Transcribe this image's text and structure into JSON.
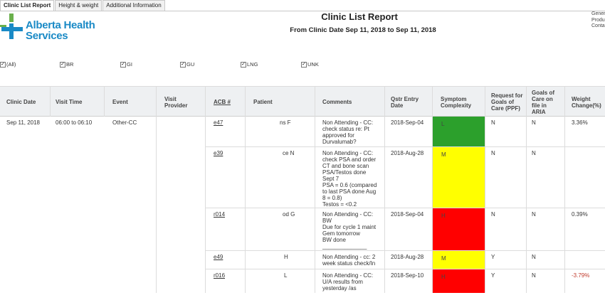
{
  "tabs": [
    {
      "label": "Clinic List Report",
      "active": true
    },
    {
      "label": "Height & weight",
      "active": false
    },
    {
      "label": "Additional Information",
      "active": false
    }
  ],
  "logo": {
    "line1": "Alberta Health",
    "line2": "Services",
    "color": "#1a8ac6",
    "accent": "#6ab04c"
  },
  "report": {
    "title": "Clinic List Report",
    "subtitle": "From Clinic Date Sep 11, 2018 to Sep 11, 2018"
  },
  "corner_text": [
    "Gener",
    "Produ",
    "Conta"
  ],
  "filters": [
    {
      "label": "(All)",
      "checked": true
    },
    {
      "label": "BR",
      "checked": true
    },
    {
      "label": "GI",
      "checked": true
    },
    {
      "label": "GU",
      "checked": true
    },
    {
      "label": "LNG",
      "checked": true
    },
    {
      "label": "UNK",
      "checked": true
    }
  ],
  "columns": {
    "clinic_date": "Clinic Date",
    "visit_time": "Visit Time",
    "event": "Event",
    "visit_provider": "Visit Provider",
    "acb": "ACB #",
    "patient": "Patient",
    "comments": "Comments",
    "qstr_entry_date": "Qstr Entry Date",
    "symptom_complexity": "Symptom Complexity",
    "request_goals": "Request for Goals of Care (PPF)",
    "goals_aria": "Goals of Care on file in ARIA",
    "weight_change": "Weight Change(%)"
  },
  "group": {
    "clinic_date": "Sep 11, 2018",
    "visit_time": "06:00 to 06:10",
    "event": "Other-CC"
  },
  "colors": {
    "green": "#2ca02c",
    "yellow": "#ffff00",
    "red": "#ff0000"
  },
  "rows": [
    {
      "acb": "e47",
      "patient": "ns F",
      "comments": [
        "Non Attending - CC:",
        "check status re: Pt",
        "approved for",
        "Durvalumab?"
      ],
      "qstr_date": "2018-Sep-04",
      "symptom": "L",
      "symptom_color": "green",
      "request": "N",
      "goals": "N",
      "weight": "3.36%",
      "weight_negative": false
    },
    {
      "acb": "e39",
      "patient": "ce N",
      "comments": [
        "Non Attending - CC:",
        "check PSA and order",
        "CT and bone scan",
        "PSA/Testos done",
        "Sept 7",
        "PSA = 0.6 (compared",
        "to last PSA done Aug",
        "8 = 0.8)",
        "Testos = <0.2"
      ],
      "qstr_date": "2018-Aug-28",
      "symptom": "M",
      "symptom_color": "yellow",
      "request": "N",
      "goals": "N",
      "weight": "",
      "weight_negative": false
    },
    {
      "acb": "r014",
      "patient": "od G",
      "comments": [
        "Non Attending - CC:",
        "BW",
        "Due for cycle 1 maint",
        "Gem tomorrow",
        "BW done",
        "______________"
      ],
      "qstr_date": "2018-Sep-04",
      "symptom": "H",
      "symptom_color": "red",
      "request": "N",
      "goals": "N",
      "weight": "0.39%",
      "weight_negative": false
    },
    {
      "acb": "e49",
      "patient": "H",
      "comments": [
        "Non Attending - cc:  2",
        "week status check/In"
      ],
      "qstr_date": "2018-Aug-28",
      "symptom": "M",
      "symptom_color": "yellow",
      "request": "Y",
      "goals": "N",
      "weight": "",
      "weight_negative": false
    },
    {
      "acb": "r016",
      "patient": "L",
      "comments": [
        "Non Attending - CC:",
        "U/A results from",
        "yesterday /as"
      ],
      "qstr_date": "2018-Sep-10",
      "symptom": "H",
      "symptom_color": "red",
      "request": "Y",
      "goals": "N",
      "weight": "-3.79%",
      "weight_negative": true
    }
  ]
}
